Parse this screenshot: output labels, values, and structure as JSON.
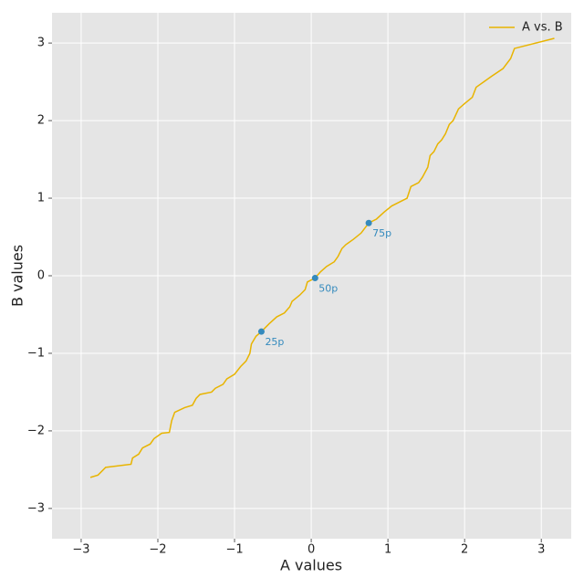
{
  "chart_data": {
    "type": "line",
    "xlabel": "A values",
    "ylabel": "B values",
    "xlim": [
      -3.38,
      3.39
    ],
    "ylim": [
      -3.39,
      3.39
    ],
    "xticks": [
      {
        "value": -3,
        "label": "−3"
      },
      {
        "value": -2,
        "label": "−2"
      },
      {
        "value": -1,
        "label": "−1"
      },
      0,
      1,
      2,
      3
    ],
    "yticks": [
      {
        "value": -3,
        "label": "−3"
      },
      {
        "value": -2,
        "label": "−2"
      },
      {
        "value": -1,
        "label": "−1"
      },
      0,
      1,
      2,
      3
    ],
    "grid": true,
    "legend": "upper right",
    "series": [
      {
        "name": "A vs. B",
        "color": "#e8b400",
        "x": [
          -2.88,
          -2.78,
          -2.68,
          -2.35,
          -2.33,
          -2.25,
          -2.2,
          -2.1,
          -2.05,
          -1.95,
          -1.85,
          -1.82,
          -1.78,
          -1.65,
          -1.55,
          -1.5,
          -1.45,
          -1.3,
          -1.25,
          -1.15,
          -1.1,
          -1.0,
          -0.92,
          -0.85,
          -0.8,
          -0.78,
          -0.72,
          -0.65,
          -0.55,
          -0.45,
          -0.35,
          -0.28,
          -0.25,
          -0.15,
          -0.08,
          -0.05,
          0.05,
          0.12,
          0.2,
          0.3,
          0.35,
          0.4,
          0.45,
          0.55,
          0.65,
          0.75,
          0.85,
          0.95,
          1.05,
          1.15,
          1.25,
          1.3,
          1.4,
          1.45,
          1.52,
          1.55,
          1.6,
          1.65,
          1.7,
          1.75,
          1.8,
          1.85,
          1.92,
          2.0,
          2.1,
          2.15,
          2.25,
          2.35,
          2.5,
          2.6,
          2.65,
          3.17
        ],
        "values": [
          -2.6,
          -2.57,
          -2.47,
          -2.43,
          -2.35,
          -2.3,
          -2.22,
          -2.17,
          -2.1,
          -2.03,
          -2.02,
          -1.87,
          -1.76,
          -1.7,
          -1.67,
          -1.58,
          -1.53,
          -1.5,
          -1.45,
          -1.4,
          -1.33,
          -1.27,
          -1.17,
          -1.1,
          -1.0,
          -0.88,
          -0.78,
          -0.72,
          -0.62,
          -0.53,
          -0.48,
          -0.4,
          -0.33,
          -0.25,
          -0.18,
          -0.08,
          -0.03,
          0.05,
          0.12,
          0.18,
          0.25,
          0.35,
          0.4,
          0.47,
          0.55,
          0.68,
          0.73,
          0.82,
          0.9,
          0.95,
          1.0,
          1.15,
          1.2,
          1.27,
          1.4,
          1.55,
          1.6,
          1.7,
          1.75,
          1.83,
          1.95,
          2.0,
          2.15,
          2.22,
          2.3,
          2.43,
          2.5,
          2.57,
          2.67,
          2.8,
          2.93,
          3.06
        ]
      }
    ],
    "annotation_color": "#348abd",
    "annotations": [
      {
        "label": "25p",
        "x": -0.65,
        "y": -0.72
      },
      {
        "label": "50p",
        "x": 0.05,
        "y": -0.03
      },
      {
        "label": "75p",
        "x": 0.75,
        "y": 0.68
      }
    ]
  }
}
